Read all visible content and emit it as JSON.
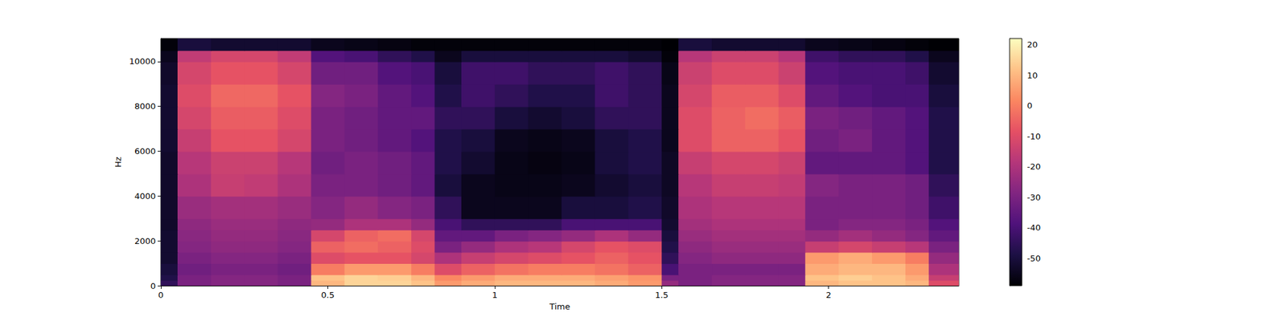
{
  "chart_data": {
    "type": "heatmap",
    "x_label": "Time",
    "y_label": "Hz",
    "xlim": [
      0,
      2.39
    ],
    "ylim": [
      0,
      11025
    ],
    "xticks": [
      0,
      0.5,
      1,
      1.5,
      2
    ],
    "yticks": [
      0,
      2000,
      4000,
      6000,
      8000,
      10000
    ],
    "x_edges": [
      0,
      0.05,
      0.15,
      0.25,
      0.35,
      0.45,
      0.55,
      0.65,
      0.75,
      0.82,
      0.9,
      1.0,
      1.1,
      1.2,
      1.3,
      1.4,
      1.5,
      1.55,
      1.65,
      1.75,
      1.85,
      1.93,
      2.03,
      2.13,
      2.23,
      2.3,
      2.39
    ],
    "y_edges": [
      0,
      250,
      500,
      1000,
      1500,
      2000,
      2500,
      3000,
      4000,
      5000,
      6000,
      7000,
      8000,
      9000,
      10000,
      10500,
      11025
    ],
    "z": [
      [
        -45,
        -30,
        -28,
        -28,
        -30,
        10,
        15,
        15,
        12,
        5,
        8,
        10,
        10,
        10,
        8,
        5,
        -25,
        -30,
        -28,
        -28,
        -28,
        10,
        12,
        12,
        10,
        -10
      ],
      [
        -48,
        -30,
        -28,
        -28,
        -30,
        12,
        15,
        14,
        10,
        2,
        5,
        8,
        8,
        8,
        6,
        4,
        -30,
        -30,
        -28,
        -28,
        -28,
        12,
        14,
        12,
        8,
        -15
      ],
      [
        -50,
        -32,
        -30,
        -30,
        -32,
        0,
        5,
        5,
        0,
        -10,
        -5,
        -2,
        0,
        0,
        -2,
        -5,
        -40,
        -30,
        -30,
        -30,
        -30,
        8,
        10,
        10,
        5,
        -20
      ],
      [
        -52,
        -30,
        -28,
        -28,
        -30,
        -10,
        -8,
        -8,
        -12,
        -20,
        -15,
        -12,
        -10,
        -8,
        -5,
        -8,
        -45,
        -28,
        -26,
        -26,
        -26,
        5,
        8,
        5,
        0,
        -25
      ],
      [
        -52,
        -28,
        -26,
        -26,
        -28,
        -5,
        -3,
        -5,
        -10,
        -30,
        -25,
        -20,
        -18,
        -12,
        -8,
        -10,
        -48,
        -26,
        -24,
        -24,
        -24,
        -15,
        -12,
        -15,
        -18,
        -30
      ],
      [
        -52,
        -27,
        -25,
        -25,
        -27,
        -12,
        -5,
        -3,
        -12,
        -35,
        -35,
        -30,
        -28,
        -25,
        -20,
        -25,
        -50,
        -24,
        -22,
        -22,
        -22,
        -25,
        -22,
        -25,
        -28,
        -35
      ],
      [
        -53,
        -26,
        -24,
        -24,
        -26,
        -25,
        -20,
        -20,
        -25,
        -40,
        -45,
        -45,
        -45,
        -40,
        -40,
        -40,
        -52,
        -22,
        -20,
        -20,
        -20,
        -30,
        -28,
        -28,
        -30,
        -38
      ],
      [
        -53,
        -24,
        -22,
        -22,
        -24,
        -28,
        -25,
        -28,
        -30,
        -45,
        -55,
        -55,
        -55,
        -50,
        -50,
        -48,
        -53,
        -20,
        -18,
        -18,
        -18,
        -30,
        -30,
        -30,
        -32,
        -42
      ],
      [
        -53,
        -20,
        -15,
        -16,
        -20,
        -30,
        -30,
        -32,
        -35,
        -50,
        -55,
        -56,
        -56,
        -55,
        -52,
        -50,
        -54,
        -18,
        -15,
        -15,
        -16,
        -28,
        -30,
        -30,
        -32,
        -45
      ],
      [
        -53,
        -18,
        -14,
        -14,
        -18,
        -32,
        -30,
        -32,
        -35,
        -48,
        -52,
        -56,
        -57,
        -56,
        -50,
        -48,
        -54,
        -15,
        -12,
        -12,
        -14,
        -35,
        -35,
        -35,
        -38,
        -48
      ],
      [
        -52,
        -15,
        -8,
        -8,
        -12,
        -30,
        -32,
        -35,
        -38,
        -48,
        -50,
        -55,
        -56,
        -55,
        -50,
        -48,
        -55,
        -10,
        -5,
        -5,
        -8,
        -32,
        -30,
        -35,
        -38,
        -48
      ],
      [
        -52,
        -12,
        -6,
        -6,
        -10,
        -30,
        -32,
        -35,
        -35,
        -45,
        -45,
        -50,
        -52,
        -50,
        -45,
        -45,
        -55,
        -10,
        -5,
        -3,
        -6,
        -30,
        -32,
        -35,
        -38,
        -48
      ],
      [
        -52,
        -10,
        -4,
        -4,
        -8,
        -28,
        -30,
        -35,
        -38,
        -48,
        -42,
        -45,
        -48,
        -48,
        -42,
        -45,
        -55,
        -12,
        -6,
        -6,
        -10,
        -35,
        -38,
        -40,
        -40,
        -50
      ],
      [
        -53,
        -12,
        -8,
        -8,
        -12,
        -32,
        -32,
        -38,
        -40,
        -50,
        -42,
        -42,
        -45,
        -45,
        -42,
        -45,
        -56,
        -14,
        -10,
        -10,
        -14,
        -38,
        -40,
        -40,
        -42,
        -52
      ],
      [
        -55,
        -16,
        -12,
        -12,
        -16,
        -38,
        -40,
        -45,
        -48,
        -55,
        -50,
        -50,
        -50,
        -50,
        -50,
        -52,
        -58,
        -18,
        -14,
        -14,
        -18,
        -42,
        -45,
        -45,
        -48,
        -55
      ],
      [
        -58,
        -50,
        -52,
        -52,
        -52,
        -55,
        -56,
        -57,
        -58,
        -58,
        -58,
        -58,
        -58,
        -58,
        -58,
        -58,
        -59,
        -50,
        -52,
        -52,
        -52,
        -55,
        -56,
        -57,
        -58,
        -59
      ]
    ],
    "colorbar_range": [
      -59,
      22
    ],
    "colorbar_ticks": [
      -50,
      -40,
      -30,
      -20,
      -10,
      0,
      10,
      20
    ]
  }
}
